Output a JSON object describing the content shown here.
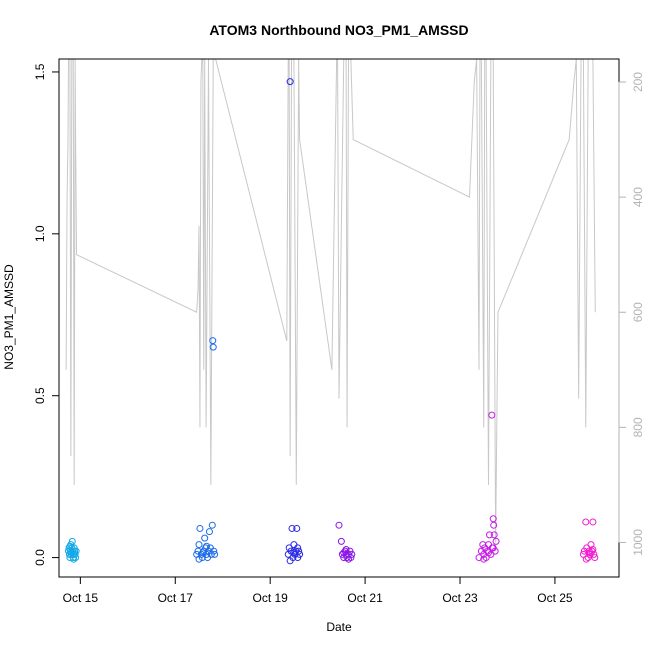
{
  "chart_data": {
    "type": "scatter",
    "title": "ATOM3 Northbound NO3_PM1_AMSSD",
    "xlabel": "Date",
    "ylabel": "NO3_PM1_AMSSD",
    "xlim": [
      14.55,
      26.35
    ],
    "ylim": [
      -0.06,
      1.54
    ],
    "x_ticks": [
      {
        "value": 15,
        "label": "Oct 15"
      },
      {
        "value": 17,
        "label": "Oct 17"
      },
      {
        "value": 19,
        "label": "Oct 19"
      },
      {
        "value": 21,
        "label": "Oct 21"
      },
      {
        "value": 23,
        "label": "Oct 23"
      },
      {
        "value": 25,
        "label": "Oct 25"
      }
    ],
    "y_ticks": [
      {
        "value": 0.0,
        "label": "0.0"
      },
      {
        "value": 0.5,
        "label": "0.5"
      },
      {
        "value": 1.0,
        "label": "1.0"
      },
      {
        "value": 1.5,
        "label": "1.5"
      }
    ],
    "right_axis": {
      "ylim": [
        1060,
        160
      ],
      "reversed": true,
      "ticks": [
        {
          "value": 200,
          "label": "200"
        },
        {
          "value": 400,
          "label": "400"
        },
        {
          "value": 600,
          "label": "600"
        },
        {
          "value": 800,
          "label": "800"
        },
        {
          "value": 1000,
          "label": "1000"
        }
      ],
      "color": "#b3b3b3"
    },
    "grid": false,
    "series": [
      {
        "kind": "points",
        "color": "#12a8e8",
        "points": [
          [
            14.75,
            0.02
          ],
          [
            14.76,
            0.03
          ],
          [
            14.77,
            0.01
          ],
          [
            14.78,
            0.0
          ],
          [
            14.79,
            0.02
          ],
          [
            14.8,
            0.04
          ],
          [
            14.81,
            0.01
          ],
          [
            14.82,
            0.03
          ],
          [
            14.83,
            0.05
          ],
          [
            14.84,
            0.02
          ],
          [
            14.85,
            0.0
          ],
          [
            14.86,
            0.01
          ],
          [
            14.87,
            0.03
          ],
          [
            14.88,
            0.02
          ],
          [
            14.89,
            0.01
          ],
          [
            14.9,
            0.0
          ],
          [
            14.91,
            0.02
          ],
          [
            14.78,
            0.035
          ],
          [
            14.82,
            0.015
          ],
          [
            14.86,
            -0.005
          ]
        ]
      },
      {
        "kind": "points",
        "color": "#1c6be8",
        "points": [
          [
            17.45,
            0.01
          ],
          [
            17.48,
            0.02
          ],
          [
            17.5,
            0.04
          ],
          [
            17.52,
            0.09
          ],
          [
            17.55,
            0.01
          ],
          [
            17.57,
            0.0
          ],
          [
            17.6,
            0.02
          ],
          [
            17.62,
            0.06
          ],
          [
            17.64,
            0.03
          ],
          [
            17.66,
            0.01
          ],
          [
            17.68,
            0.0
          ],
          [
            17.7,
            0.02
          ],
          [
            17.72,
            0.08
          ],
          [
            17.74,
            0.03
          ],
          [
            17.76,
            0.01
          ],
          [
            17.78,
            0.1
          ],
          [
            17.79,
            0.67
          ],
          [
            17.8,
            0.65
          ],
          [
            17.81,
            0.02
          ],
          [
            17.83,
            0.01
          ],
          [
            17.5,
            -0.005
          ],
          [
            17.58,
            0.015
          ],
          [
            17.66,
            0.035
          ]
        ]
      },
      {
        "kind": "points",
        "color": "#2929e6",
        "points": [
          [
            19.38,
            0.01
          ],
          [
            19.4,
            0.03
          ],
          [
            19.42,
            1.47
          ],
          [
            19.44,
            0.02
          ],
          [
            19.46,
            0.09
          ],
          [
            19.48,
            0.0
          ],
          [
            19.5,
            0.04
          ],
          [
            19.52,
            0.01
          ],
          [
            19.54,
            0.02
          ],
          [
            19.56,
            0.09
          ],
          [
            19.58,
            0.0
          ],
          [
            19.6,
            0.02
          ],
          [
            19.62,
            0.01
          ],
          [
            19.42,
            -0.01
          ],
          [
            19.5,
            0.015
          ],
          [
            19.58,
            0.03
          ]
        ]
      },
      {
        "kind": "points",
        "color": "#8a14e6",
        "points": [
          [
            20.45,
            0.1
          ],
          [
            20.5,
            0.05
          ],
          [
            20.52,
            0.01
          ],
          [
            20.55,
            0.0
          ],
          [
            20.58,
            0.02
          ],
          [
            20.6,
            0.01
          ],
          [
            20.62,
            0.0
          ],
          [
            20.65,
            0.01
          ],
          [
            20.68,
            0.02
          ],
          [
            20.7,
            0.0
          ],
          [
            20.72,
            0.01
          ],
          [
            20.55,
            0.015
          ],
          [
            20.65,
            -0.005
          ],
          [
            20.6,
            0.025
          ]
        ]
      },
      {
        "kind": "points",
        "color": "#c71ce6",
        "points": [
          [
            23.4,
            0.0
          ],
          [
            23.45,
            0.02
          ],
          [
            23.48,
            0.04
          ],
          [
            23.5,
            0.01
          ],
          [
            23.52,
            0.03
          ],
          [
            23.55,
            0.0
          ],
          [
            23.58,
            0.02
          ],
          [
            23.6,
            0.04
          ],
          [
            23.62,
            0.07
          ],
          [
            23.65,
            0.01
          ],
          [
            23.67,
            0.44
          ],
          [
            23.68,
            0.03
          ],
          [
            23.7,
            0.12
          ],
          [
            23.71,
            0.1
          ],
          [
            23.72,
            0.07
          ],
          [
            23.74,
            0.02
          ],
          [
            23.76,
            0.05
          ],
          [
            23.5,
            -0.005
          ],
          [
            23.6,
            0.015
          ],
          [
            23.7,
            0.03
          ]
        ]
      },
      {
        "kind": "points",
        "color": "#f21ccf",
        "points": [
          [
            25.6,
            0.01
          ],
          [
            25.62,
            0.02
          ],
          [
            25.65,
            0.11
          ],
          [
            25.67,
            0.03
          ],
          [
            25.7,
            0.0
          ],
          [
            25.72,
            0.02
          ],
          [
            25.74,
            0.01
          ],
          [
            25.76,
            0.04
          ],
          [
            25.78,
            0.02
          ],
          [
            25.8,
            0.11
          ],
          [
            25.82,
            0.01
          ],
          [
            25.84,
            0.0
          ],
          [
            25.66,
            -0.005
          ],
          [
            25.74,
            0.015
          ],
          [
            25.8,
            0.025
          ]
        ]
      },
      {
        "kind": "line",
        "axis": "right",
        "color": "#c8c8c8",
        "points": [
          [
            14.7,
            700
          ],
          [
            14.72,
            400
          ],
          [
            14.74,
            300
          ],
          [
            14.75,
            160
          ],
          [
            14.78,
            160
          ],
          [
            14.8,
            850
          ],
          [
            14.82,
            160
          ],
          [
            14.85,
            160
          ],
          [
            14.87,
            900
          ],
          [
            14.89,
            160
          ],
          [
            14.9,
            300
          ],
          [
            14.92,
            500
          ],
          [
            17.45,
            600
          ],
          [
            17.48,
            560
          ],
          [
            17.5,
            450
          ],
          [
            17.52,
            800
          ],
          [
            17.54,
            200
          ],
          [
            17.56,
            160
          ],
          [
            17.58,
            160
          ],
          [
            17.6,
            700
          ],
          [
            17.62,
            160
          ],
          [
            17.65,
            800
          ],
          [
            17.7,
            160
          ],
          [
            17.75,
            900
          ],
          [
            17.8,
            160
          ],
          [
            17.85,
            160
          ],
          [
            19.35,
            650
          ],
          [
            19.38,
            160
          ],
          [
            19.4,
            160
          ],
          [
            19.42,
            850
          ],
          [
            19.45,
            160
          ],
          [
            19.5,
            160
          ],
          [
            19.55,
            900
          ],
          [
            19.6,
            160
          ],
          [
            19.62,
            300
          ],
          [
            20.3,
            700
          ],
          [
            20.4,
            160
          ],
          [
            20.42,
            160
          ],
          [
            20.45,
            750
          ],
          [
            20.5,
            450
          ],
          [
            20.55,
            160
          ],
          [
            20.6,
            160
          ],
          [
            20.62,
            800
          ],
          [
            20.65,
            160
          ],
          [
            20.7,
            160
          ],
          [
            20.75,
            300
          ],
          [
            23.2,
            400
          ],
          [
            23.3,
            200
          ],
          [
            23.35,
            160
          ],
          [
            23.4,
            700
          ],
          [
            23.42,
            160
          ],
          [
            23.45,
            160
          ],
          [
            23.5,
            800
          ],
          [
            23.52,
            160
          ],
          [
            23.55,
            160
          ],
          [
            23.6,
            900
          ],
          [
            23.65,
            160
          ],
          [
            23.7,
            160
          ],
          [
            23.75,
            1000
          ],
          [
            23.8,
            600
          ],
          [
            25.3,
            300
          ],
          [
            25.4,
            200
          ],
          [
            25.45,
            160
          ],
          [
            25.5,
            750
          ],
          [
            25.55,
            160
          ],
          [
            25.6,
            160
          ],
          [
            25.65,
            800
          ],
          [
            25.7,
            160
          ],
          [
            25.8,
            160
          ],
          [
            25.85,
            600
          ]
        ]
      }
    ]
  }
}
